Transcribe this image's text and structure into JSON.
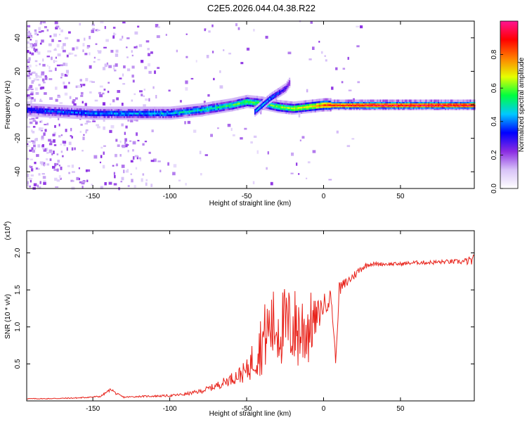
{
  "title": "C2E5.2026.044.04.38.R22",
  "chart_data": [
    {
      "type": "heatmap",
      "panel": "spectrogram",
      "xlabel": "Height of straight line (km)",
      "ylabel": "Frequency (Hz)",
      "xlim": [
        -193,
        98
      ],
      "ylim": [
        -50,
        50
      ],
      "xticks": [
        -150,
        -100,
        -50,
        0,
        50
      ],
      "yticks": [
        -40,
        -20,
        0,
        20,
        40
      ],
      "colorbar": {
        "label": "Normalized spectral amplitude",
        "range": [
          0,
          1
        ],
        "ticks": [
          0.0,
          0.2,
          0.4,
          0.6,
          0.8
        ],
        "tick_labels": [
          "0.0",
          "0.2",
          "0.4",
          "0.6",
          "0.8"
        ],
        "colors": [
          "#ffffff",
          "#d8c3f8",
          "#8a2be2",
          "#0000ff",
          "#00c8ff",
          "#00ff40",
          "#e6ff00",
          "#ff8000",
          "#ff0000",
          "#ff1493"
        ]
      },
      "ridge": {
        "x": [
          -193,
          -150,
          -100,
          -80,
          -60,
          -50,
          -40,
          -30,
          -20,
          -10,
          0,
          10,
          20,
          30,
          50,
          98
        ],
        "y": [
          -3,
          -5,
          -5,
          -3,
          0,
          2,
          1,
          -1,
          -2,
          -1,
          0,
          0,
          0,
          0,
          0,
          0
        ],
        "amplitude": [
          0.35,
          0.4,
          0.45,
          0.5,
          0.55,
          0.6,
          0.55,
          0.6,
          0.65,
          0.7,
          0.85,
          0.9,
          0.9,
          0.95,
          0.95,
          0.95
        ]
      },
      "secondary_branch": {
        "x": [
          -45,
          -40,
          -35,
          -30,
          -25,
          -22
        ],
        "y": [
          -4,
          0,
          4,
          7,
          10,
          14
        ],
        "amplitude": [
          0.4,
          0.45,
          0.4,
          0.35,
          0.3,
          0.25
        ]
      }
    },
    {
      "type": "line",
      "panel": "snr",
      "xlabel": "Height of straight line (km)",
      "ylabel": "SNR (10 * v/v)",
      "y_multiplier": "(x10",
      "y_multiplier_exp": "4",
      "y_multiplier_close": ")",
      "xlim": [
        -193,
        98
      ],
      "ylim": [
        0,
        2.3
      ],
      "xticks": [
        -150,
        -100,
        -50,
        0,
        50
      ],
      "yticks": [
        0.5,
        1.0,
        1.5,
        2.0
      ],
      "ytick_labels": [
        "0.5",
        "1.0",
        "1.5",
        "2.0"
      ],
      "series": [
        {
          "color": "#e8231b",
          "x": [
            -193,
            -180,
            -160,
            -145,
            -138,
            -135,
            -130,
            -120,
            -100,
            -90,
            -80,
            -70,
            -60,
            -50,
            -45,
            -40,
            -35,
            -30,
            -25,
            -20,
            -15,
            -10,
            -5,
            0,
            5,
            8,
            10,
            15,
            20,
            25,
            30,
            40,
            50,
            60,
            70,
            80,
            90,
            98
          ],
          "y": [
            0.03,
            0.03,
            0.04,
            0.06,
            0.16,
            0.1,
            0.05,
            0.06,
            0.07,
            0.09,
            0.13,
            0.2,
            0.3,
            0.4,
            0.6,
            0.8,
            1.0,
            1.0,
            1.0,
            1.0,
            0.95,
            1.0,
            1.1,
            1.3,
            1.4,
            0.5,
            1.5,
            1.6,
            1.7,
            1.8,
            1.85,
            1.85,
            1.85,
            1.87,
            1.87,
            1.88,
            1.88,
            1.9
          ],
          "noise": [
            0.005,
            0.006,
            0.008,
            0.01,
            0.02,
            0.015,
            0.01,
            0.01,
            0.015,
            0.02,
            0.03,
            0.05,
            0.08,
            0.15,
            0.3,
            0.45,
            0.5,
            0.55,
            0.55,
            0.55,
            0.6,
            0.55,
            0.25,
            0.15,
            0.12,
            0.05,
            0.1,
            0.08,
            0.06,
            0.05,
            0.03,
            0.025,
            0.025,
            0.025,
            0.03,
            0.03,
            0.035,
            0.08
          ]
        }
      ]
    }
  ]
}
